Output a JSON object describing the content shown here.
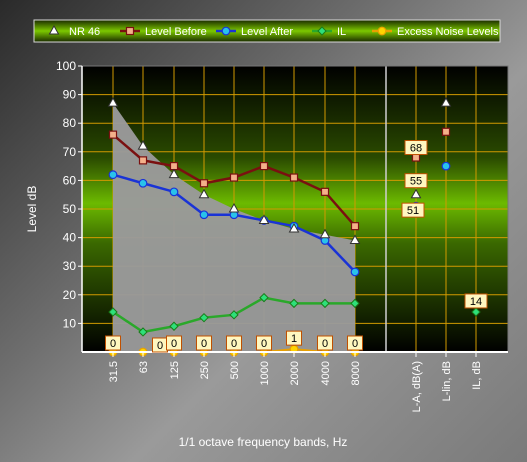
{
  "chart_data": {
    "type": "line",
    "xlabel": "1/1 octave frequency bands, Hz",
    "ylabel": "Level dB",
    "ylim": [
      0,
      100
    ],
    "yticks": [
      10,
      20,
      30,
      40,
      50,
      60,
      70,
      80,
      90,
      100
    ],
    "grid": true,
    "legend_position": "top",
    "categories": [
      "31.5",
      "63",
      "125",
      "250",
      "500",
      "1000",
      "2000",
      "4000",
      "8000"
    ],
    "summary_categories": [
      "L-A, dB(A)",
      "L-lin, dB",
      "IL, dB"
    ],
    "legend": [
      "NR 46",
      "Level Before",
      "Level After",
      "IL",
      "Excess Noise Levels"
    ],
    "series": [
      {
        "name": "NR 46",
        "color": "#ffffff",
        "marker": "triangle",
        "values": [
          87,
          72,
          62,
          55,
          50,
          46,
          43,
          41,
          39
        ],
        "summary": [
          55,
          87,
          null
        ]
      },
      {
        "name": "Level Before",
        "color": "#7a1010",
        "marker": "square",
        "values": [
          76,
          67,
          65,
          59,
          61,
          65,
          61,
          56,
          44
        ],
        "summary": [
          68,
          77,
          null
        ]
      },
      {
        "name": "Level After",
        "color": "#1a33d6",
        "marker": "circle",
        "values": [
          62,
          59,
          56,
          48,
          48,
          46,
          44,
          39,
          28
        ],
        "summary": [
          51,
          65,
          null
        ]
      },
      {
        "name": "IL",
        "color": "#2aa82a",
        "marker": "diamond",
        "values": [
          14,
          7,
          9,
          12,
          13,
          19,
          17,
          17,
          17
        ],
        "summary": [
          null,
          null,
          14
        ]
      },
      {
        "name": "Excess Noise Levels",
        "color": "#e8a000",
        "marker": "circle",
        "values": [
          0,
          0,
          0,
          0,
          0,
          0,
          1,
          0,
          0
        ],
        "summary": [
          null,
          null,
          null
        ]
      }
    ],
    "annotations": {
      "excess_labels": [
        "0",
        "0",
        "0",
        "0",
        "0",
        "0",
        "1",
        "0",
        "0"
      ],
      "summary_labels": [
        {
          "text": "68",
          "series": "Level Before",
          "column": 0
        },
        {
          "text": "55",
          "series": "NR 46",
          "column": 0
        },
        {
          "text": "51",
          "series": "Level After",
          "column": 0
        },
        {
          "text": "14",
          "series": "IL",
          "column": 2
        }
      ]
    }
  }
}
